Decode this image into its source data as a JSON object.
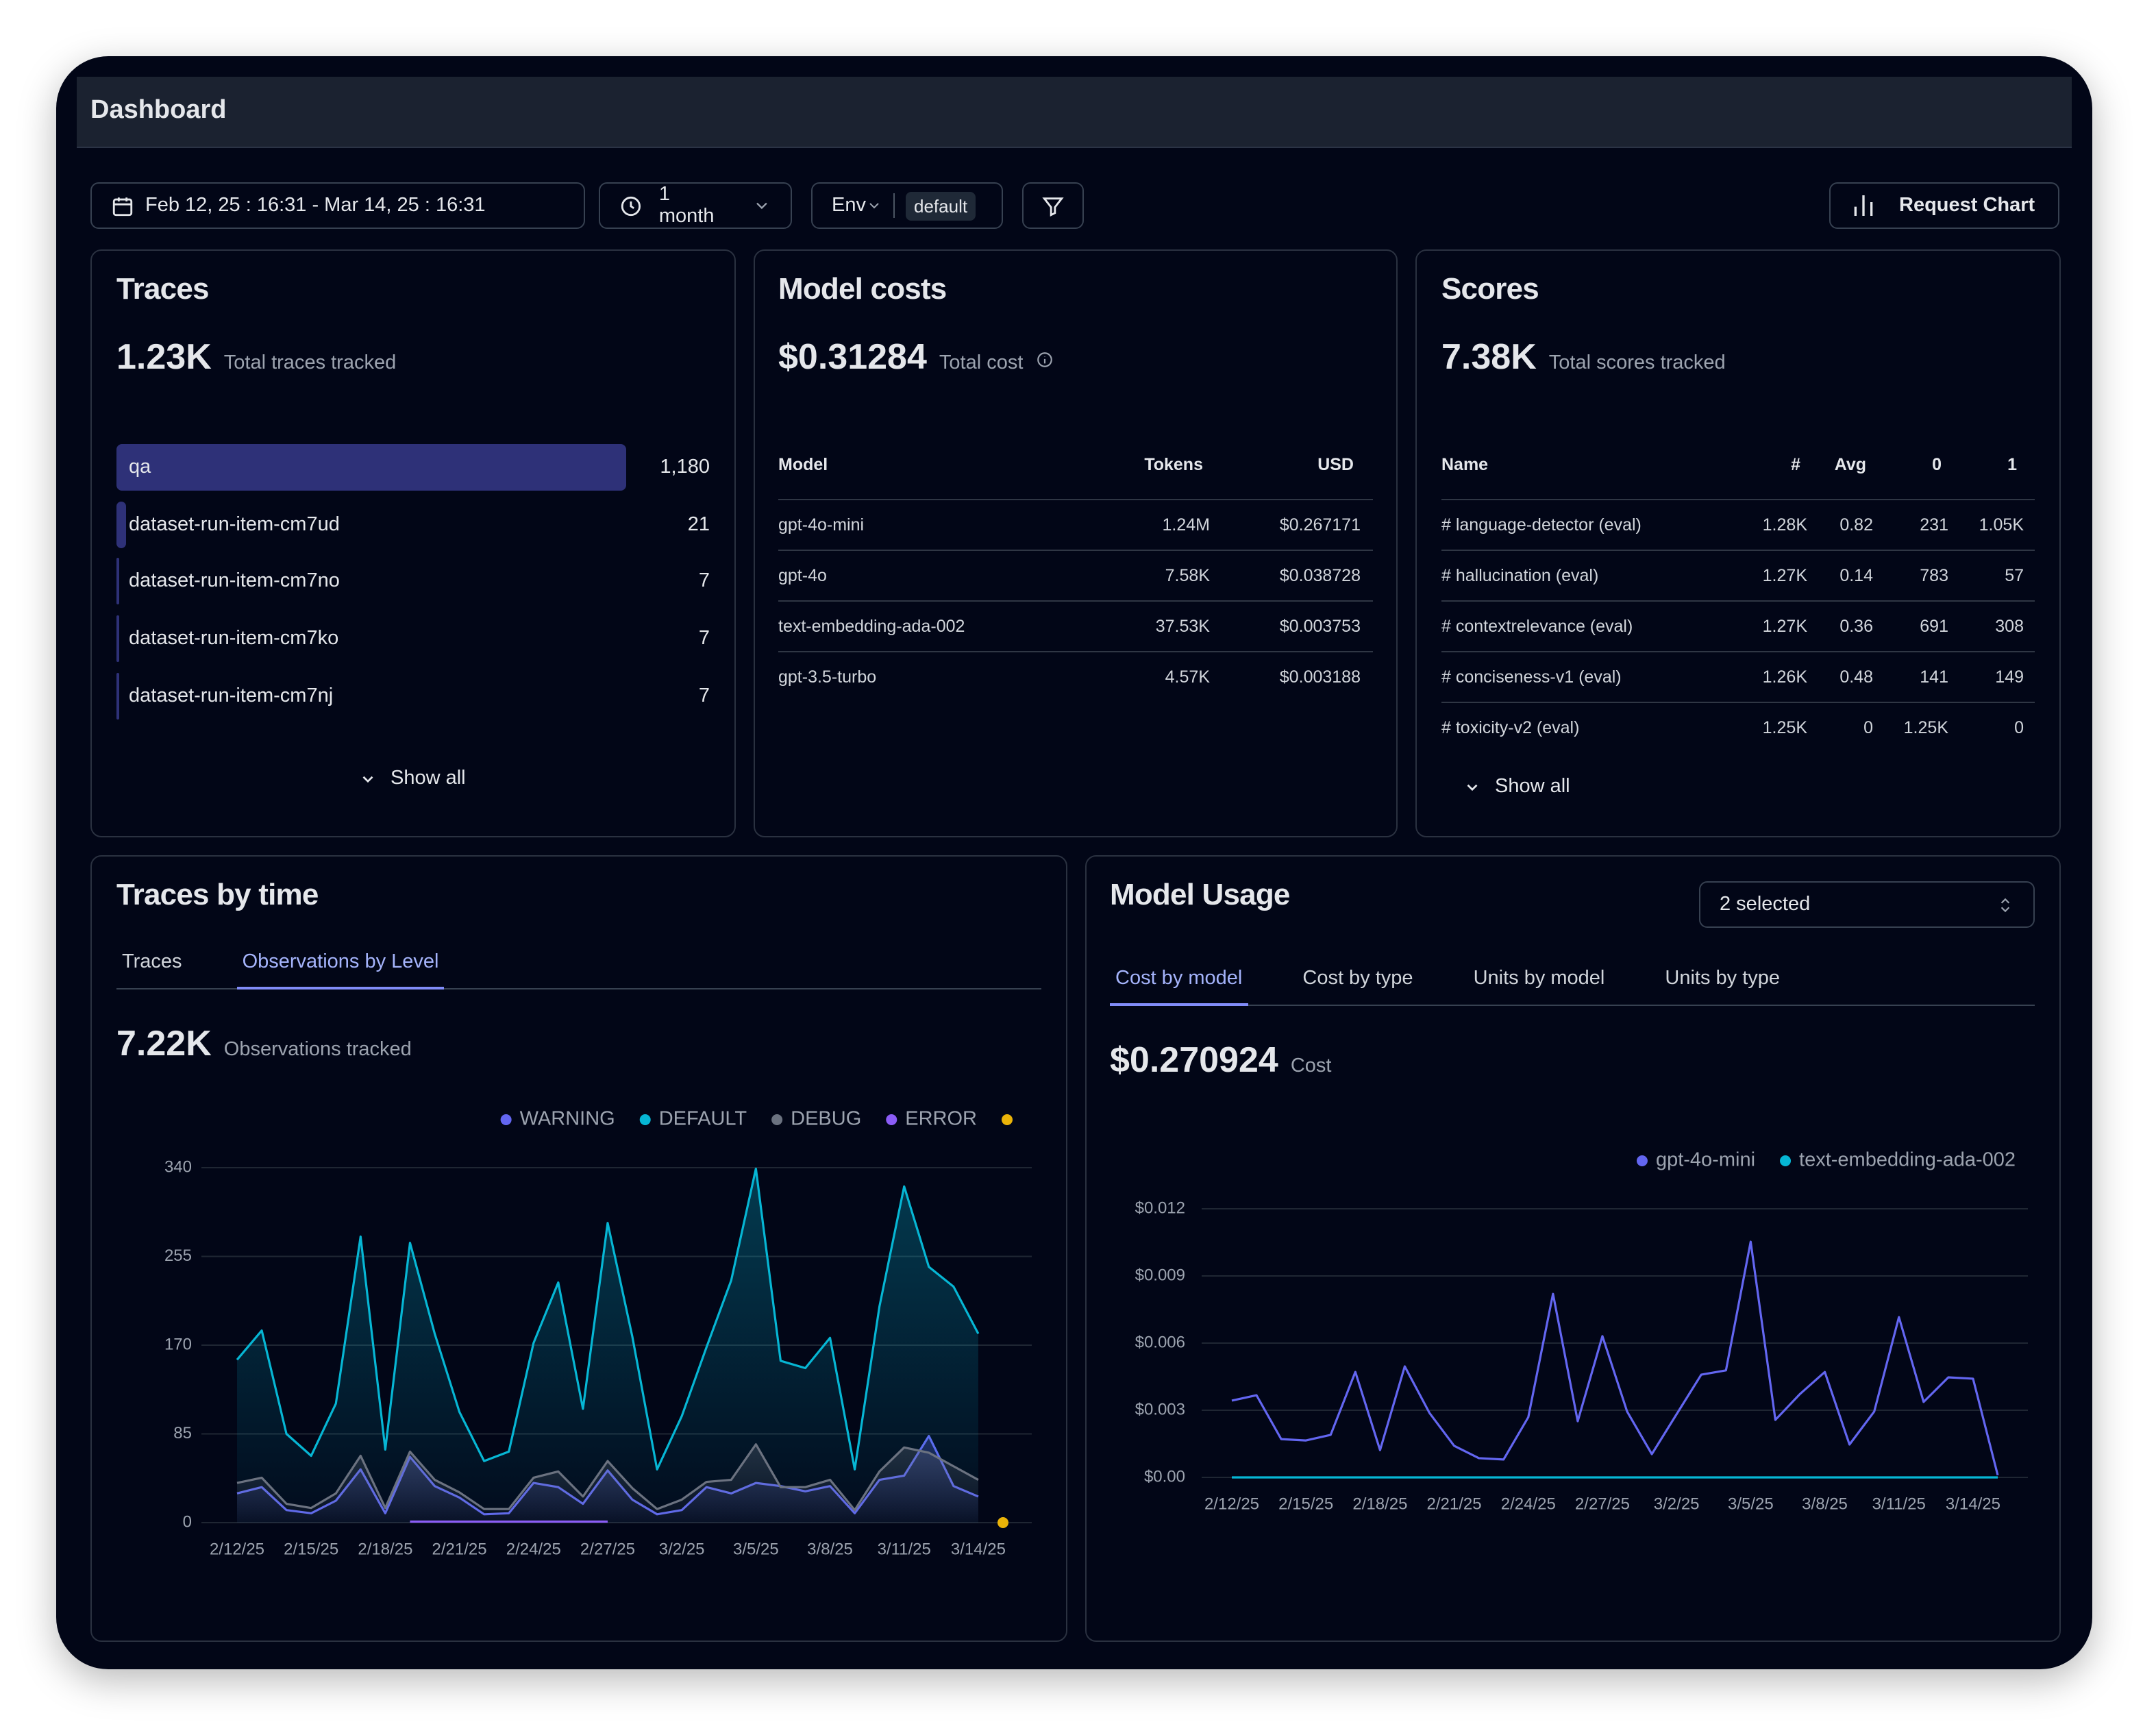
{
  "header": {
    "title": "Dashboard"
  },
  "filters": {
    "date_range": "Feb 12, 25 : 16:31 - Mar 14, 25 : 16:31",
    "period": "1 month",
    "env_label": "Env",
    "env_value": "default",
    "request_chart": "Request Chart"
  },
  "traces": {
    "title": "Traces",
    "total": "1.23K",
    "total_caption": "Total traces tracked",
    "names": [
      "qa",
      "dataset-run-item-cm7ud",
      "dataset-run-item-cm7no",
      "dataset-run-item-cm7ko",
      "dataset-run-item-cm7nj"
    ],
    "values": [
      1180,
      21,
      7,
      7,
      7
    ],
    "value_labels": [
      "1,180",
      "21",
      "7",
      "7",
      "7"
    ],
    "show_all": "Show all"
  },
  "model_costs": {
    "title": "Model costs",
    "total": "$0.31284",
    "total_caption": "Total cost",
    "table": {
      "header": [
        "Model",
        "Tokens",
        "USD"
      ],
      "rows": [
        [
          "gpt-4o-mini",
          "1.24M",
          "$0.267171"
        ],
        [
          "gpt-4o",
          "7.58K",
          "$0.038728"
        ],
        [
          "text-embedding-ada-002",
          "37.53K",
          "$0.003753"
        ],
        [
          "gpt-3.5-turbo",
          "4.57K",
          "$0.003188"
        ]
      ]
    }
  },
  "scores": {
    "title": "Scores",
    "total": "7.38K",
    "total_caption": "Total scores tracked",
    "table": {
      "header": [
        "Name",
        "#",
        "Avg",
        "0",
        "1"
      ],
      "rows": [
        [
          "# language-detector (eval)",
          "1.28K",
          "0.82",
          "231",
          "1.05K"
        ],
        [
          "# hallucination (eval)",
          "1.27K",
          "0.14",
          "783",
          "57"
        ],
        [
          "# contextrelevance (eval)",
          "1.27K",
          "0.36",
          "691",
          "308"
        ],
        [
          "# conciseness-v1 (eval)",
          "1.26K",
          "0.48",
          "141",
          "149"
        ],
        [
          "# toxicity-v2 (eval)",
          "1.25K",
          "0",
          "1.25K",
          "0"
        ]
      ]
    },
    "show_all": "Show all"
  },
  "traces_by_time": {
    "title": "Traces by time",
    "tabs": [
      "Traces",
      "Observations by Level"
    ],
    "active_tab": 1,
    "total": "7.22K",
    "total_caption": "Observations tracked",
    "chart": {
      "type": "area",
      "categories": [
        "2/12/25",
        null,
        null,
        "2/15/25",
        null,
        null,
        "2/18/25",
        null,
        null,
        "2/21/25",
        null,
        null,
        "2/24/25",
        null,
        null,
        "2/27/25",
        null,
        null,
        "3/2/25",
        null,
        null,
        "3/5/25",
        null,
        null,
        "3/8/25",
        null,
        null,
        "3/11/25",
        null,
        null,
        "3/14/25",
        null
      ],
      "series": [
        {
          "name": "WARNING",
          "color": "#6366f1",
          "values": [
            28,
            34,
            12,
            9,
            21,
            51,
            9,
            63,
            35,
            24,
            8,
            9,
            38,
            34,
            18,
            50,
            22,
            8,
            12,
            34,
            28,
            38,
            35,
            30,
            35,
            9,
            41,
            45,
            83,
            35,
            25,
            null
          ]
        },
        {
          "name": "DEFAULT",
          "color": "#06b6d4",
          "values": [
            156,
            184,
            85,
            64,
            114,
            274,
            70,
            268,
            181,
            106,
            59,
            68,
            172,
            230,
            109,
            287,
            178,
            51,
            102,
            168,
            232,
            339,
            155,
            148,
            177,
            51,
            207,
            322,
            245,
            226,
            181,
            null
          ]
        },
        {
          "name": "DEBUG",
          "color": "#6b7280",
          "values": [
            38,
            43,
            18,
            14,
            28,
            64,
            14,
            68,
            41,
            29,
            13,
            13,
            43,
            49,
            25,
            59,
            33,
            13,
            22,
            39,
            41,
            75,
            34,
            34,
            41,
            12,
            49,
            72,
            67,
            54,
            41,
            null
          ]
        },
        {
          "name": "ERROR",
          "color": "#8b5cf6",
          "values": [
            null,
            null,
            null,
            null,
            null,
            null,
            null,
            1,
            1,
            1,
            1,
            1,
            1,
            1,
            1,
            1,
            null,
            null,
            null,
            null,
            null,
            null,
            null,
            null,
            null,
            null,
            null,
            null,
            null,
            null,
            null,
            null
          ]
        },
        {
          "name": null,
          "color": "#eab308",
          "values": [
            null,
            null,
            null,
            null,
            null,
            null,
            null,
            null,
            null,
            null,
            null,
            null,
            null,
            null,
            null,
            null,
            null,
            null,
            null,
            null,
            null,
            null,
            null,
            null,
            null,
            null,
            null,
            null,
            null,
            null,
            null,
            0
          ]
        }
      ],
      "ylim": [
        0,
        340
      ],
      "yticks": [
        0,
        85,
        170,
        255,
        340
      ],
      "grid": true
    }
  },
  "model_usage": {
    "title": "Model Usage",
    "selector": "2 selected",
    "tabs": [
      "Cost by model",
      "Cost by type",
      "Units by model",
      "Units by type"
    ],
    "active_tab": 0,
    "total": "$0.270924",
    "total_caption": "Cost",
    "chart": {
      "type": "line",
      "categories": [
        "2/12/25",
        null,
        null,
        "2/15/25",
        null,
        null,
        "2/18/25",
        null,
        null,
        "2/21/25",
        null,
        null,
        "2/24/25",
        null,
        null,
        "2/27/25",
        null,
        null,
        "3/2/25",
        null,
        null,
        "3/5/25",
        null,
        null,
        "3/8/25",
        null,
        null,
        "3/11/25",
        null,
        null,
        "3/14/25",
        null
      ],
      "series": [
        {
          "name": "gpt-4o-mini",
          "color": "#6366f1",
          "values": [
            0.00343,
            0.00367,
            0.00171,
            0.00165,
            0.0019,
            0.00471,
            0.00122,
            0.00496,
            0.00288,
            0.00141,
            0.00086,
            0.0008,
            0.00269,
            0.0082,
            0.00251,
            0.00631,
            0.00294,
            0.00104,
            0.00282,
            0.00459,
            0.00478,
            0.01053,
            0.00257,
            0.00373,
            0.00471,
            0.00147,
            0.00294,
            0.00716,
            0.00337,
            0.00447,
            0.00441,
            0.0001
          ]
        },
        {
          "name": "text-embedding-ada-002",
          "color": "#06b6d4",
          "values": [
            0,
            0,
            0,
            0,
            0,
            0,
            0,
            0,
            0,
            0,
            0,
            0,
            0,
            0,
            0,
            0,
            0,
            0,
            0,
            0,
            0,
            0,
            0,
            0,
            0,
            0,
            0,
            0,
            0,
            0,
            0,
            0
          ]
        }
      ],
      "ylim": [
        0,
        0.012
      ],
      "yticks": [
        {
          "value": 0,
          "label": "$0.00"
        },
        {
          "value": 0.003,
          "label": "$0.003"
        },
        {
          "value": 0.006,
          "label": "$0.006"
        },
        {
          "value": 0.009,
          "label": "$0.009"
        },
        {
          "value": 0.012,
          "label": "$0.012"
        }
      ],
      "grid": true
    }
  }
}
